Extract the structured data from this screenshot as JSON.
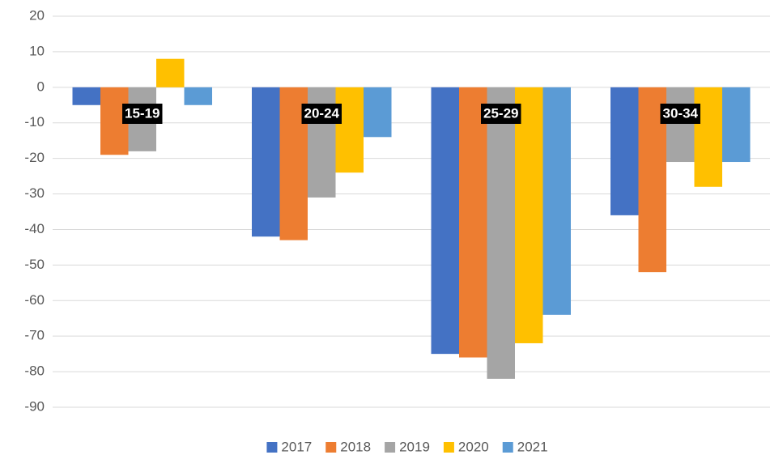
{
  "chart_data": {
    "type": "bar",
    "categories": [
      "15-19",
      "20-24",
      "25-29",
      "30-34"
    ],
    "series": [
      {
        "name": "2017",
        "color": "#4472c4",
        "values": [
          -5,
          -42,
          -75,
          -36
        ]
      },
      {
        "name": "2018",
        "color": "#ed7d31",
        "values": [
          -19,
          -43,
          -76,
          -52
        ]
      },
      {
        "name": "2019",
        "color": "#a5a5a5",
        "values": [
          -18,
          -31,
          -82,
          -21
        ]
      },
      {
        "name": "2020",
        "color": "#ffc000",
        "values": [
          8,
          -24,
          -72,
          -28
        ]
      },
      {
        "name": "2021",
        "color": "#5b9bd5",
        "values": [
          -5,
          -14,
          -64,
          -21
        ]
      }
    ],
    "ylim": [
      -90,
      20
    ],
    "yticks": [
      20,
      10,
      0,
      -10,
      -20,
      -30,
      -40,
      -50,
      -60,
      -70,
      -80,
      -90
    ],
    "grid": true,
    "legend": "bottom"
  }
}
